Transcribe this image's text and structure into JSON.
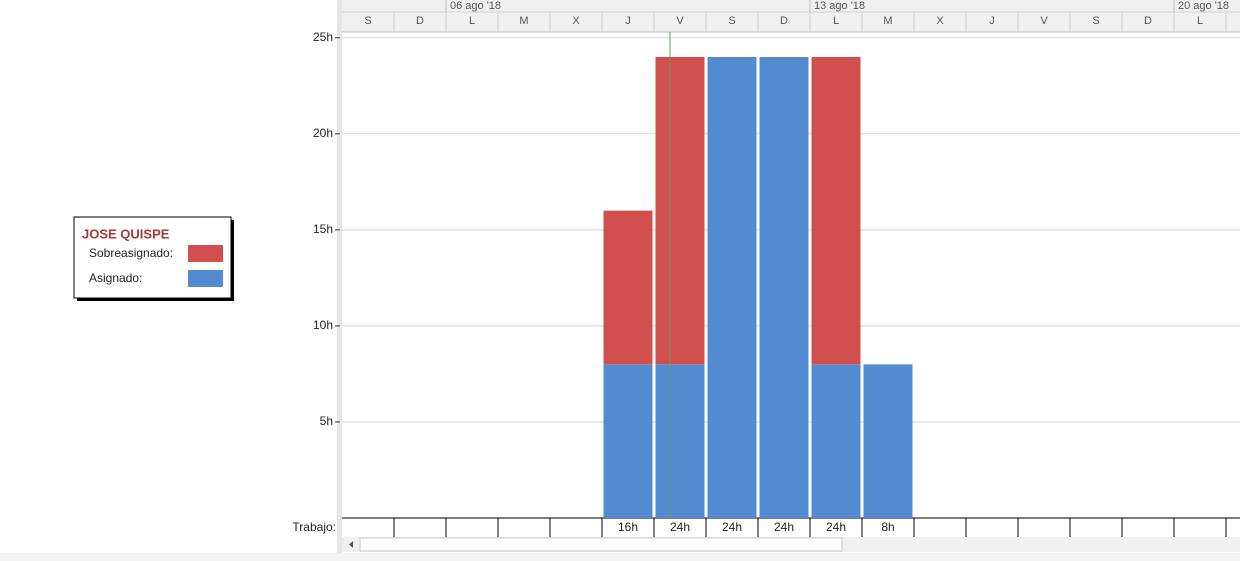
{
  "chart_data": {
    "type": "bar",
    "stacked": true,
    "legend_title": "JOSE QUISPE",
    "categories": [
      "S",
      "D",
      "L",
      "M",
      "X",
      "J",
      "V",
      "S",
      "D",
      "L",
      "M",
      "X",
      "J",
      "V",
      "S",
      "D",
      "L"
    ],
    "week_labels": [
      "06 ago '18",
      "13 ago '18",
      "20 ago '18"
    ],
    "series": [
      {
        "name": "Sobreasignado:",
        "color": "#d24f4f",
        "values": [
          null,
          null,
          null,
          null,
          null,
          8,
          16,
          null,
          null,
          16,
          null,
          null,
          null,
          null,
          null,
          null,
          null
        ]
      },
      {
        "name": "Asignado:",
        "color": "#528bd0",
        "values": [
          null,
          null,
          null,
          null,
          null,
          8,
          8,
          24,
          24,
          8,
          8,
          null,
          null,
          null,
          null,
          null,
          null
        ]
      }
    ],
    "ylim": [
      0,
      25.3
    ],
    "yticks": [
      {
        "value": 5,
        "label": "5h"
      },
      {
        "value": 10,
        "label": "10h"
      },
      {
        "value": 15,
        "label": "15h"
      },
      {
        "value": 20,
        "label": "20h"
      },
      {
        "value": 25,
        "label": "25h"
      }
    ],
    "grid": true,
    "row_label": "Trabajo:",
    "row_values": [
      null,
      null,
      null,
      null,
      null,
      "16h",
      "24h",
      "24h",
      "24h",
      "24h",
      "8h",
      null,
      null,
      null,
      null,
      null,
      null
    ]
  }
}
